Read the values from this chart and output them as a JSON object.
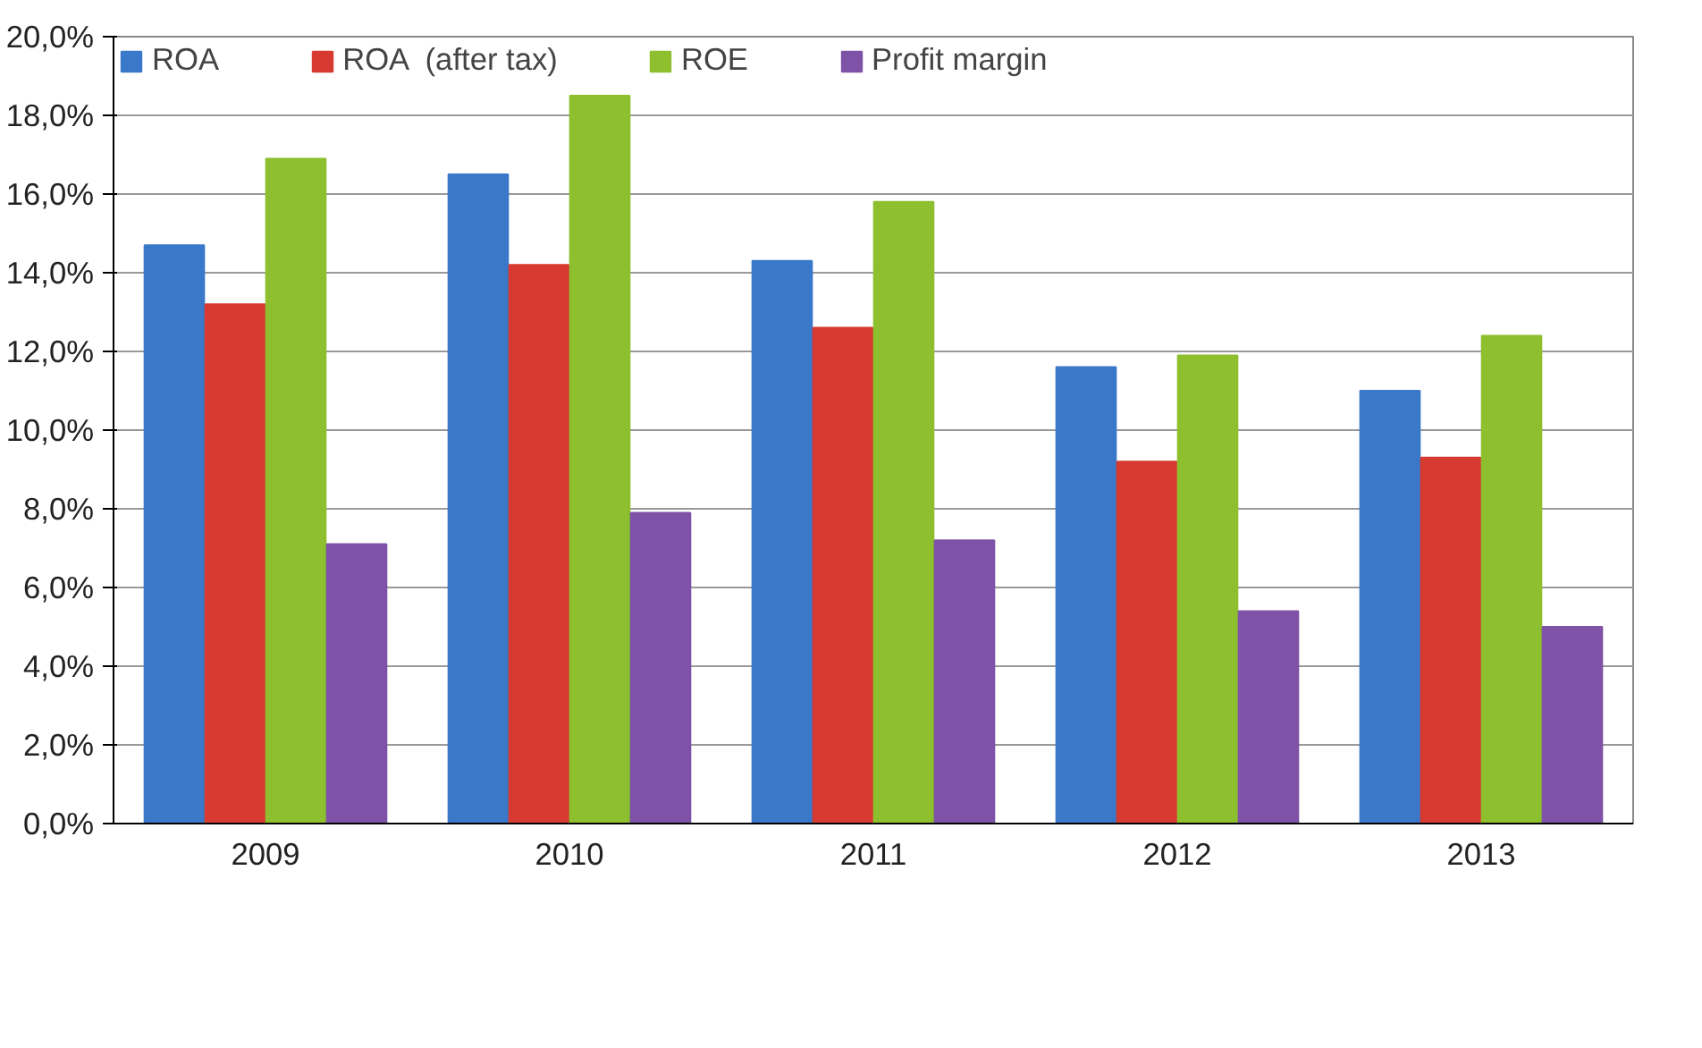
{
  "chart_data": {
    "type": "bar",
    "categories": [
      "2009",
      "2010",
      "2011",
      "2012",
      "2013"
    ],
    "series": [
      {
        "name": "ROA",
        "color": "#3a78c9",
        "values": [
          14.7,
          16.5,
          14.3,
          11.6,
          11.0
        ]
      },
      {
        "name": "ROA  (after tax)",
        "color": "#d63a30",
        "values": [
          13.2,
          14.2,
          12.6,
          9.2,
          9.3
        ]
      },
      {
        "name": "ROE",
        "color": "#8dbf2f",
        "values": [
          16.9,
          18.5,
          15.8,
          11.9,
          12.4
        ]
      },
      {
        "name": "Profit margin",
        "color": "#7e52a6",
        "values": [
          7.1,
          7.9,
          7.2,
          5.4,
          5.0
        ]
      }
    ],
    "ylim": [
      0,
      20
    ],
    "yticks": [
      {
        "value": 0,
        "label": "0,0%"
      },
      {
        "value": 2,
        "label": "2,0%"
      },
      {
        "value": 4,
        "label": "4,0%"
      },
      {
        "value": 6,
        "label": "6,0%"
      },
      {
        "value": 8,
        "label": "8,0%"
      },
      {
        "value": 10,
        "label": "10,0%"
      },
      {
        "value": 12,
        "label": "12,0%"
      },
      {
        "value": 14,
        "label": "14,0%"
      },
      {
        "value": 16,
        "label": "16,0%"
      },
      {
        "value": 18,
        "label": "18,0%"
      },
      {
        "value": 20,
        "label": "20,0%"
      }
    ],
    "grid": "y",
    "legend": "top left"
  }
}
